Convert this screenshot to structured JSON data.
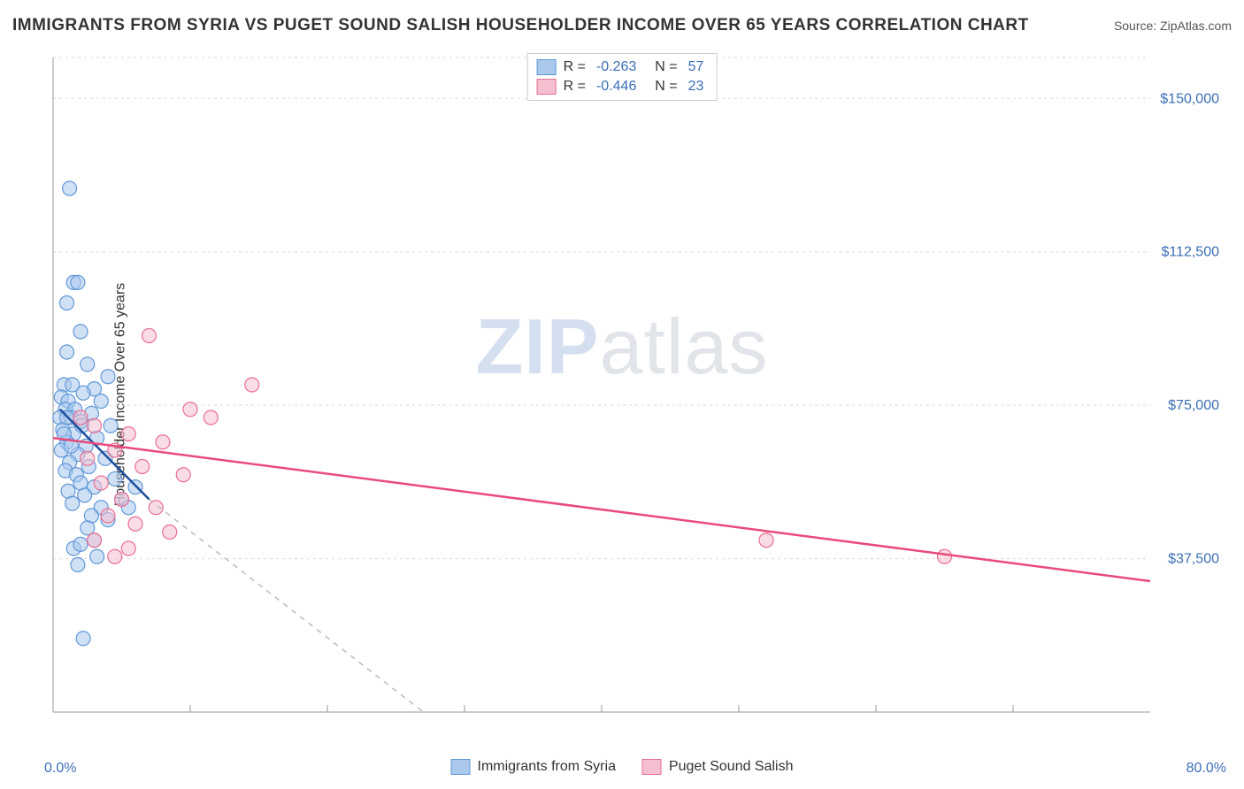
{
  "title": "IMMIGRANTS FROM SYRIA VS PUGET SOUND SALISH HOUSEHOLDER INCOME OVER 65 YEARS CORRELATION CHART",
  "source": "Source: ZipAtlas.com",
  "y_axis_label": "Householder Income Over 65 years",
  "watermark_a": "ZIP",
  "watermark_b": "atlas",
  "chart": {
    "type": "scatter",
    "xlim": [
      0,
      80
    ],
    "ylim": [
      0,
      160000
    ],
    "x_tick_min_label": "0.0%",
    "x_tick_max_label": "80.0%",
    "y_ticks": [
      37500,
      75000,
      112500,
      150000
    ],
    "y_tick_labels": [
      "$37,500",
      "$75,000",
      "$112,500",
      "$150,000"
    ],
    "x_minor_ticks": [
      10,
      20,
      30,
      40,
      50,
      60,
      70
    ],
    "grid_color": "#d9d9d9",
    "axis_color": "#999999",
    "background_color": "#ffffff",
    "marker_radius": 8,
    "marker_opacity": 0.55,
    "series": [
      {
        "name": "Immigrants from Syria",
        "color_fill": "#a9c8ec",
        "color_stroke": "#6198d8",
        "R": "-0.263",
        "N": "57",
        "trend": {
          "x1": 0.5,
          "y1": 74000,
          "x2": 7,
          "y2": 52000,
          "color": "#1f4e9c",
          "width": 2.5,
          "dash_ext_x": 20,
          "dash_ext_y": 0
        },
        "points": [
          [
            1.2,
            128000
          ],
          [
            1.5,
            105000
          ],
          [
            1.8,
            105000
          ],
          [
            1.0,
            100000
          ],
          [
            2.0,
            93000
          ],
          [
            1.0,
            88000
          ],
          [
            2.5,
            85000
          ],
          [
            4.0,
            82000
          ],
          [
            0.8,
            80000
          ],
          [
            1.4,
            80000
          ],
          [
            3.0,
            79000
          ],
          [
            2.2,
            78000
          ],
          [
            0.6,
            77000
          ],
          [
            1.1,
            76000
          ],
          [
            3.5,
            76000
          ],
          [
            0.9,
            74000
          ],
          [
            1.6,
            74000
          ],
          [
            2.8,
            73000
          ],
          [
            0.5,
            72000
          ],
          [
            1.3,
            72000
          ],
          [
            2.0,
            71000
          ],
          [
            4.2,
            70000
          ],
          [
            0.7,
            69000
          ],
          [
            1.5,
            68000
          ],
          [
            3.2,
            67000
          ],
          [
            1.0,
            66000
          ],
          [
            2.4,
            65000
          ],
          [
            0.6,
            64000
          ],
          [
            1.8,
            63000
          ],
          [
            3.8,
            62000
          ],
          [
            1.2,
            61000
          ],
          [
            2.6,
            60000
          ],
          [
            0.9,
            59000
          ],
          [
            1.7,
            58000
          ],
          [
            4.5,
            57000
          ],
          [
            2.0,
            56000
          ],
          [
            3.0,
            55000
          ],
          [
            1.1,
            54000
          ],
          [
            2.3,
            53000
          ],
          [
            5.0,
            52000
          ],
          [
            1.4,
            51000
          ],
          [
            3.5,
            50000
          ],
          [
            2.8,
            48000
          ],
          [
            6.0,
            55000
          ],
          [
            4.0,
            47000
          ],
          [
            2.5,
            45000
          ],
          [
            5.5,
            50000
          ],
          [
            3.0,
            42000
          ],
          [
            1.5,
            40000
          ],
          [
            2.0,
            41000
          ],
          [
            1.8,
            36000
          ],
          [
            3.2,
            38000
          ],
          [
            2.2,
            18000
          ],
          [
            1.0,
            72000
          ],
          [
            0.8,
            68000
          ],
          [
            1.3,
            65000
          ],
          [
            2.1,
            70000
          ]
        ]
      },
      {
        "name": "Puget Sound Salish",
        "color_fill": "#f4c0cf",
        "color_stroke": "#e96f94",
        "R": "-0.446",
        "N": "23",
        "trend": {
          "x1": 0,
          "y1": 67000,
          "x2": 80,
          "y2": 32000,
          "color": "#e94b7a",
          "width": 2.5
        },
        "points": [
          [
            7.0,
            92000
          ],
          [
            14.5,
            80000
          ],
          [
            10.0,
            74000
          ],
          [
            11.5,
            72000
          ],
          [
            5.5,
            68000
          ],
          [
            8.0,
            66000
          ],
          [
            3.0,
            70000
          ],
          [
            4.5,
            64000
          ],
          [
            2.0,
            72000
          ],
          [
            6.5,
            60000
          ],
          [
            9.5,
            58000
          ],
          [
            3.5,
            56000
          ],
          [
            5.0,
            52000
          ],
          [
            7.5,
            50000
          ],
          [
            2.5,
            62000
          ],
          [
            4.0,
            48000
          ],
          [
            6.0,
            46000
          ],
          [
            8.5,
            44000
          ],
          [
            3.0,
            42000
          ],
          [
            5.5,
            40000
          ],
          [
            4.5,
            38000
          ],
          [
            52.0,
            42000
          ],
          [
            65.0,
            38000
          ]
        ]
      }
    ]
  },
  "legend_bottom": [
    {
      "label": "Immigrants from Syria",
      "fill": "#a9c8ec",
      "stroke": "#6198d8"
    },
    {
      "label": "Puget Sound Salish",
      "fill": "#f4c0cf",
      "stroke": "#e96f94"
    }
  ]
}
